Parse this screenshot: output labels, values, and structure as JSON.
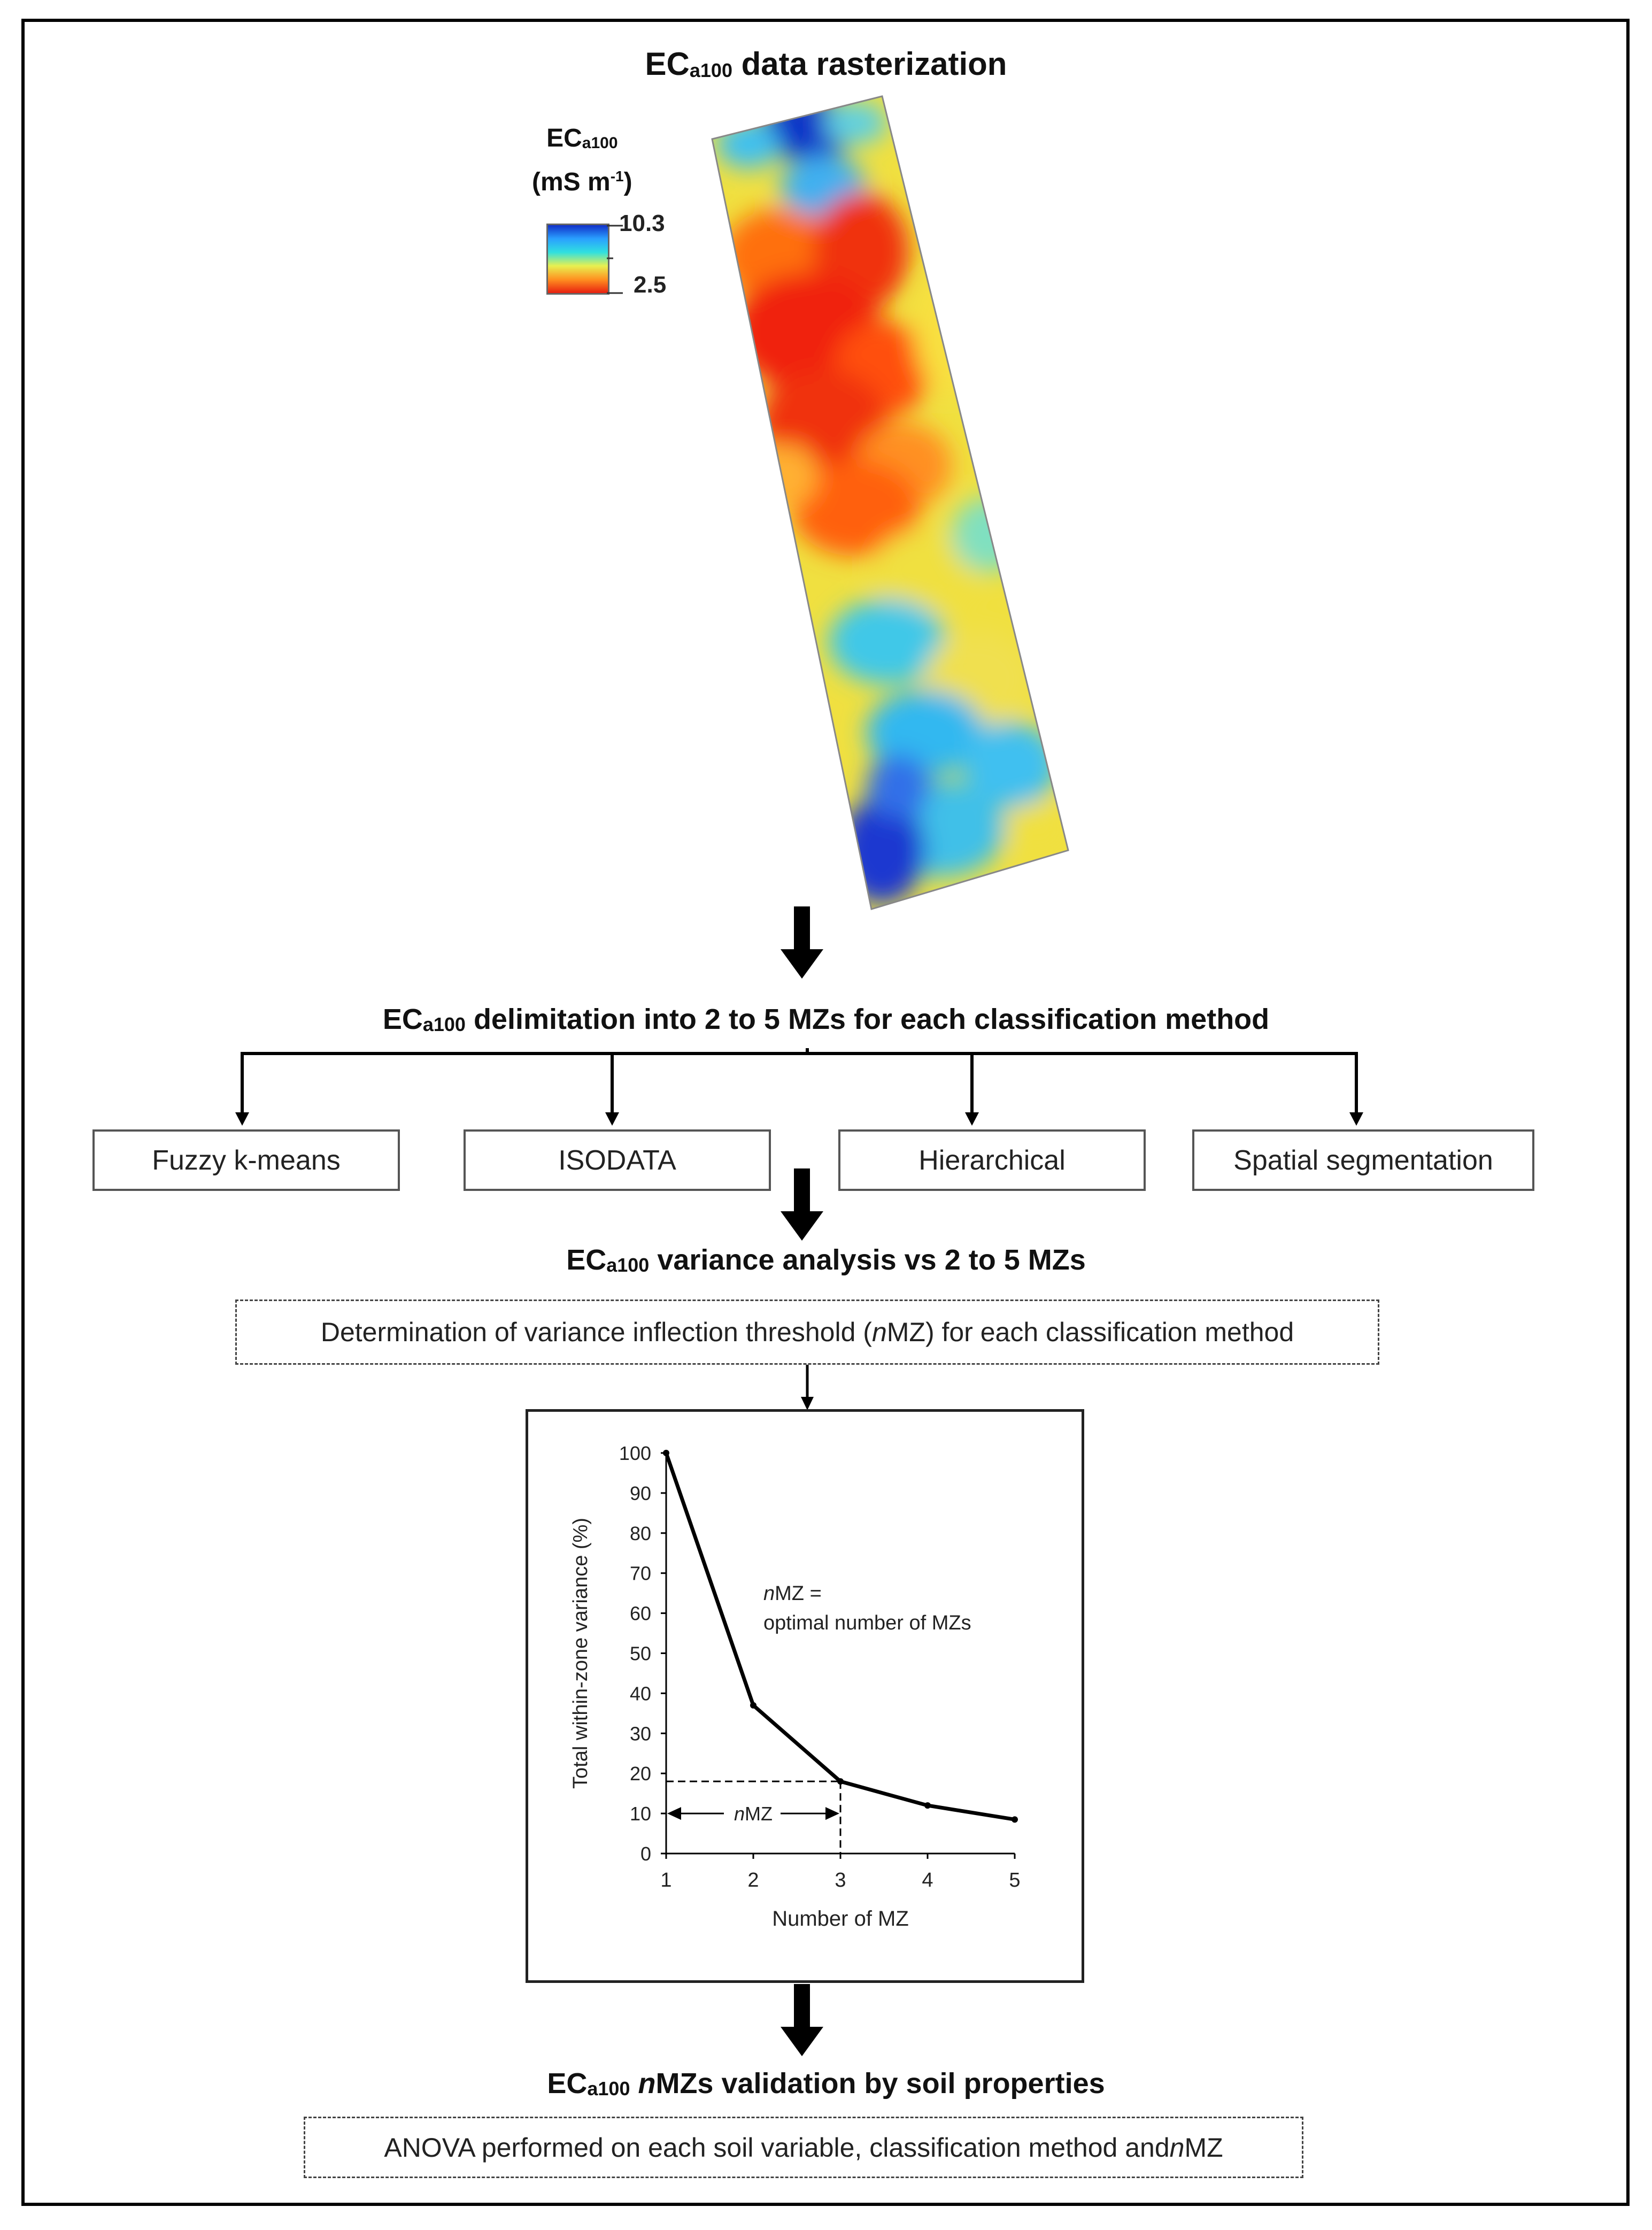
{
  "titles": {
    "step1": "EC",
    "step1_sub": "a100",
    "step1_rest": " data rasterization",
    "step2": "EC",
    "step2_sub": "a100",
    "step2_rest": " delimitation into 2 to 5 MZs for each classification method",
    "step3": "EC",
    "step3_sub": "a100",
    "step3_rest": " variance analysis vs 2 to 5 MZs",
    "step4": "EC",
    "step4_sub": "a100",
    "step4_italic": " n",
    "step4_rest": "MZs validation by soil properties"
  },
  "legend": {
    "label_main": "EC",
    "label_sub": "a100",
    "unit": "(mS m",
    "unit_exp": "-1",
    "unit_close": ")",
    "max": "10.3",
    "min": "2.5",
    "colors": [
      "#1030c8",
      "#2aa0ff",
      "#30e0e0",
      "#e8f050",
      "#ff9020",
      "#e82010"
    ]
  },
  "methods": [
    "Fuzzy k-means",
    "ISODATA",
    "Hierarchical",
    "Spatial segmentation"
  ],
  "variance_box": {
    "before": "Determination of variance inflection threshold (",
    "italic": "n",
    "after": "MZ) for each classification method"
  },
  "anova_box": {
    "before": "ANOVA performed on each soil variable, classification method and ",
    "italic": "n",
    "after": "MZ"
  },
  "chart_data": {
    "type": "line",
    "x": [
      1,
      2,
      3,
      4,
      5
    ],
    "values": [
      100,
      37,
      18,
      12,
      8.5
    ],
    "xlabel": "Number of MZ",
    "ylabel": "Total within-zone variance (%)",
    "xticks": [
      "1",
      "2",
      "3",
      "4",
      "5"
    ],
    "yticks": [
      "0",
      "10",
      "20",
      "30",
      "40",
      "50",
      "60",
      "70",
      "80",
      "90",
      "100"
    ],
    "ylim": [
      0,
      100
    ],
    "xlim": [
      1,
      5
    ],
    "annotation_italic": "n",
    "annotation_rest": "MZ =",
    "annotation_line2": "optimal number of MZs",
    "arrow_label_italic": "n",
    "arrow_label_rest": "MZ",
    "threshold_x": 3,
    "threshold_y": 18
  }
}
